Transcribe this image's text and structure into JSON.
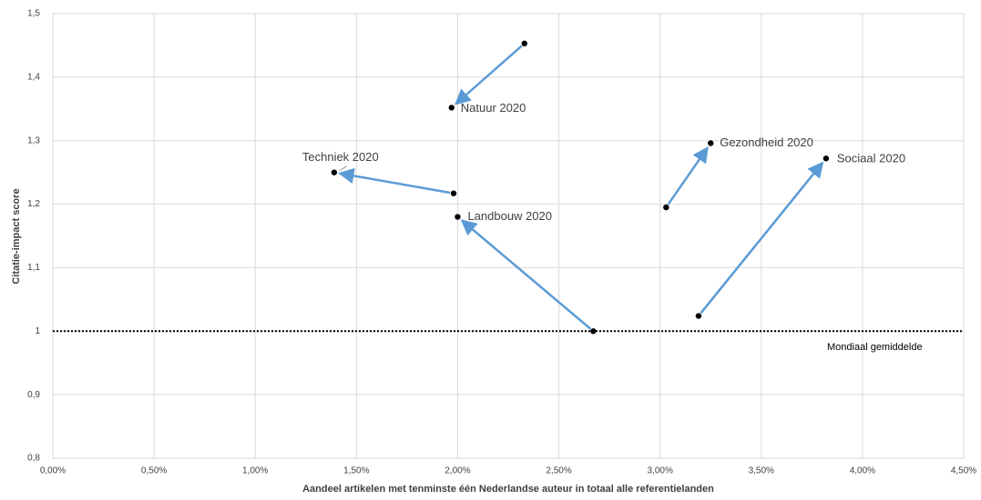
{
  "chart_data": {
    "type": "arrow",
    "x_label": "Aandeel artikelen met tenminste één Nederlandse auteur in totaal alle referentielanden",
    "y_label": "Citatie-impact score",
    "xlim": [
      0,
      4.5
    ],
    "xticks": [
      {
        "value": 0,
        "label": "0,00%"
      },
      {
        "value": 0.5,
        "label": "0,50%"
      },
      {
        "value": 1,
        "label": "1,00%"
      },
      {
        "value": 1.5,
        "label": "1,50%"
      },
      {
        "value": 2,
        "label": "2,00%"
      },
      {
        "value": 2.5,
        "label": "2,50%"
      },
      {
        "value": 3,
        "label": "3,00%"
      },
      {
        "value": 3.5,
        "label": "3,50%"
      },
      {
        "value": 4,
        "label": "4,00%"
      },
      {
        "value": 4.5,
        "label": "4,50%"
      }
    ],
    "ylim": [
      0.8,
      1.5
    ],
    "yticks": [
      {
        "value": 0.8,
        "label": "0,8"
      },
      {
        "value": 0.9,
        "label": "0,9"
      },
      1,
      {
        "value": 1.1,
        "label": "1,1"
      },
      {
        "value": 1.2,
        "label": "1,2"
      },
      {
        "value": 1.3,
        "label": "1,3"
      },
      {
        "value": 1.4,
        "label": "1,4"
      },
      {
        "value": 1.5,
        "label": "1,5"
      }
    ],
    "grid": true,
    "arrow_color": "#5b9bd5",
    "point_color": "#000000",
    "reference_line": {
      "value": 1,
      "label": "Mondiaal gemiddelde"
    },
    "series": [
      {
        "name": "Natuur 2020",
        "x": [
          2.33,
          1.97
        ],
        "values": [
          1.453,
          1.352
        ]
      },
      {
        "name": "Techniek 2020",
        "x": [
          1.98,
          1.39
        ],
        "values": [
          1.217,
          1.25
        ]
      },
      {
        "name": "Landbouw 2020",
        "x": [
          2.67,
          2.0
        ],
        "values": [
          1.0,
          1.18
        ]
      },
      {
        "name": "Gezondheid 2020",
        "x": [
          3.03,
          3.25
        ],
        "values": [
          1.195,
          1.296
        ]
      },
      {
        "name": "Sociaal 2020",
        "x": [
          3.19,
          3.82
        ],
        "values": [
          1.024,
          1.272
        ]
      }
    ]
  }
}
